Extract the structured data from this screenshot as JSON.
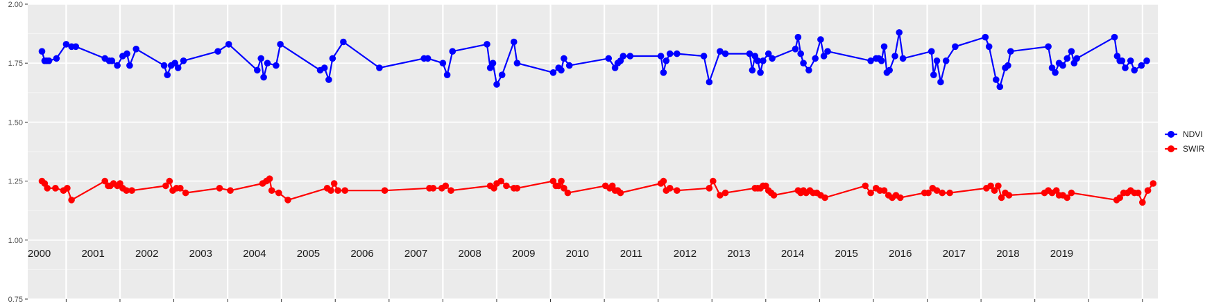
{
  "chart_data": {
    "type": "line",
    "ylim": [
      0.75,
      2.0
    ],
    "yticks": [
      "0.75",
      "1.00",
      "1.25",
      "1.50",
      "1.75",
      "2.00"
    ],
    "grid": true,
    "legend_position": "right",
    "year_labels": [
      "2000",
      "2001",
      "2002",
      "2003",
      "2004",
      "2005",
      "2006",
      "2007",
      "2008",
      "2009",
      "2010",
      "2011",
      "2012",
      "2013",
      "2014",
      "2015",
      "2016",
      "2017",
      "2018",
      "2019"
    ],
    "series": [
      {
        "name": "NDVI",
        "color": "#0000ff",
        "points": [
          [
            2000.05,
            1.8
          ],
          [
            2000.1,
            1.76
          ],
          [
            2000.14,
            1.76
          ],
          [
            2000.18,
            1.76
          ],
          [
            2000.32,
            1.77
          ],
          [
            2000.5,
            1.83
          ],
          [
            2000.6,
            1.82
          ],
          [
            2000.68,
            1.82
          ],
          [
            2001.22,
            1.77
          ],
          [
            2001.3,
            1.76
          ],
          [
            2001.35,
            1.76
          ],
          [
            2001.45,
            1.74
          ],
          [
            2001.55,
            1.78
          ],
          [
            2001.63,
            1.79
          ],
          [
            2001.68,
            1.74
          ],
          [
            2001.8,
            1.81
          ],
          [
            2002.32,
            1.74
          ],
          [
            2002.38,
            1.7
          ],
          [
            2002.45,
            1.74
          ],
          [
            2002.52,
            1.75
          ],
          [
            2002.58,
            1.73
          ],
          [
            2002.68,
            1.76
          ],
          [
            2003.32,
            1.8
          ],
          [
            2003.52,
            1.83
          ],
          [
            2004.05,
            1.72
          ],
          [
            2004.12,
            1.77
          ],
          [
            2004.17,
            1.69
          ],
          [
            2004.24,
            1.75
          ],
          [
            2004.4,
            1.74
          ],
          [
            2004.48,
            1.83
          ],
          [
            2005.22,
            1.72
          ],
          [
            2005.3,
            1.73
          ],
          [
            2005.38,
            1.68
          ],
          [
            2005.45,
            1.77
          ],
          [
            2005.65,
            1.84
          ],
          [
            2006.32,
            1.73
          ],
          [
            2007.15,
            1.77
          ],
          [
            2007.22,
            1.77
          ],
          [
            2007.5,
            1.75
          ],
          [
            2007.58,
            1.7
          ],
          [
            2007.68,
            1.8
          ],
          [
            2008.32,
            1.83
          ],
          [
            2008.38,
            1.73
          ],
          [
            2008.43,
            1.75
          ],
          [
            2008.5,
            1.66
          ],
          [
            2008.6,
            1.7
          ],
          [
            2008.82,
            1.84
          ],
          [
            2008.88,
            1.75
          ],
          [
            2009.55,
            1.71
          ],
          [
            2009.65,
            1.73
          ],
          [
            2009.7,
            1.72
          ],
          [
            2009.75,
            1.77
          ],
          [
            2009.85,
            1.74
          ],
          [
            2010.58,
            1.77
          ],
          [
            2010.7,
            1.73
          ],
          [
            2010.75,
            1.75
          ],
          [
            2010.8,
            1.76
          ],
          [
            2010.85,
            1.78
          ],
          [
            2010.98,
            1.78
          ],
          [
            2011.55,
            1.78
          ],
          [
            2011.6,
            1.71
          ],
          [
            2011.65,
            1.76
          ],
          [
            2011.72,
            1.79
          ],
          [
            2011.85,
            1.79
          ],
          [
            2012.35,
            1.78
          ],
          [
            2012.45,
            1.67
          ],
          [
            2012.65,
            1.8
          ],
          [
            2012.75,
            1.79
          ],
          [
            2013.2,
            1.79
          ],
          [
            2013.25,
            1.72
          ],
          [
            2013.3,
            1.78
          ],
          [
            2013.35,
            1.76
          ],
          [
            2013.4,
            1.71
          ],
          [
            2013.45,
            1.76
          ],
          [
            2013.55,
            1.79
          ],
          [
            2013.62,
            1.77
          ],
          [
            2014.05,
            1.81
          ],
          [
            2014.1,
            1.86
          ],
          [
            2014.15,
            1.79
          ],
          [
            2014.2,
            1.75
          ],
          [
            2014.3,
            1.72
          ],
          [
            2014.42,
            1.77
          ],
          [
            2014.52,
            1.85
          ],
          [
            2014.58,
            1.78
          ],
          [
            2014.65,
            1.8
          ],
          [
            2015.45,
            1.76
          ],
          [
            2015.55,
            1.77
          ],
          [
            2015.6,
            1.77
          ],
          [
            2015.65,
            1.76
          ],
          [
            2015.7,
            1.82
          ],
          [
            2015.75,
            1.71
          ],
          [
            2015.8,
            1.72
          ],
          [
            2015.9,
            1.78
          ],
          [
            2015.98,
            1.88
          ],
          [
            2016.05,
            1.77
          ],
          [
            2016.58,
            1.8
          ],
          [
            2016.62,
            1.7
          ],
          [
            2016.68,
            1.76
          ],
          [
            2016.75,
            1.67
          ],
          [
            2016.85,
            1.76
          ],
          [
            2017.02,
            1.82
          ],
          [
            2017.58,
            1.86
          ],
          [
            2017.65,
            1.82
          ],
          [
            2017.78,
            1.68
          ],
          [
            2017.85,
            1.65
          ],
          [
            2017.95,
            1.73
          ],
          [
            2018.0,
            1.74
          ],
          [
            2018.05,
            1.8
          ],
          [
            2018.75,
            1.82
          ],
          [
            2018.82,
            1.73
          ],
          [
            2018.88,
            1.71
          ],
          [
            2018.95,
            1.75
          ],
          [
            2019.02,
            1.74
          ],
          [
            2019.1,
            1.77
          ],
          [
            2019.18,
            1.8
          ],
          [
            2019.23,
            1.75
          ],
          [
            2019.28,
            1.77
          ],
          [
            2019.98,
            1.86
          ],
          [
            2020.03,
            1.78
          ],
          [
            2020.08,
            1.76
          ],
          [
            2020.12,
            1.76
          ],
          [
            2020.18,
            1.73
          ],
          [
            2020.28,
            1.76
          ],
          [
            2020.35,
            1.72
          ],
          [
            2020.48,
            1.74
          ],
          [
            2020.58,
            1.76
          ]
        ]
      },
      {
        "name": "SWIR",
        "color": "#ff0000",
        "points": [
          [
            2000.05,
            1.25
          ],
          [
            2000.1,
            1.24
          ],
          [
            2000.15,
            1.22
          ],
          [
            2000.3,
            1.22
          ],
          [
            2000.45,
            1.21
          ],
          [
            2000.52,
            1.22
          ],
          [
            2000.6,
            1.17
          ],
          [
            2001.22,
            1.25
          ],
          [
            2001.28,
            1.23
          ],
          [
            2001.32,
            1.23
          ],
          [
            2001.38,
            1.24
          ],
          [
            2001.45,
            1.23
          ],
          [
            2001.5,
            1.24
          ],
          [
            2001.55,
            1.22
          ],
          [
            2001.62,
            1.21
          ],
          [
            2001.72,
            1.21
          ],
          [
            2002.35,
            1.23
          ],
          [
            2002.42,
            1.25
          ],
          [
            2002.48,
            1.21
          ],
          [
            2002.55,
            1.22
          ],
          [
            2002.62,
            1.22
          ],
          [
            2002.72,
            1.2
          ],
          [
            2003.35,
            1.22
          ],
          [
            2003.55,
            1.21
          ],
          [
            2004.15,
            1.24
          ],
          [
            2004.22,
            1.25
          ],
          [
            2004.28,
            1.26
          ],
          [
            2004.32,
            1.21
          ],
          [
            2004.45,
            1.2
          ],
          [
            2004.62,
            1.17
          ],
          [
            2005.35,
            1.22
          ],
          [
            2005.42,
            1.21
          ],
          [
            2005.48,
            1.24
          ],
          [
            2005.55,
            1.21
          ],
          [
            2005.68,
            1.21
          ],
          [
            2006.42,
            1.21
          ],
          [
            2007.25,
            1.22
          ],
          [
            2007.32,
            1.22
          ],
          [
            2007.48,
            1.22
          ],
          [
            2007.55,
            1.23
          ],
          [
            2007.65,
            1.21
          ],
          [
            2008.38,
            1.23
          ],
          [
            2008.45,
            1.22
          ],
          [
            2008.5,
            1.24
          ],
          [
            2008.58,
            1.25
          ],
          [
            2008.68,
            1.23
          ],
          [
            2008.82,
            1.22
          ],
          [
            2008.88,
            1.22
          ],
          [
            2009.55,
            1.25
          ],
          [
            2009.6,
            1.23
          ],
          [
            2009.65,
            1.23
          ],
          [
            2009.7,
            1.25
          ],
          [
            2009.75,
            1.22
          ],
          [
            2009.82,
            1.2
          ],
          [
            2010.52,
            1.23
          ],
          [
            2010.6,
            1.22
          ],
          [
            2010.65,
            1.23
          ],
          [
            2010.7,
            1.21
          ],
          [
            2010.75,
            1.21
          ],
          [
            2010.8,
            1.2
          ],
          [
            2011.55,
            1.24
          ],
          [
            2011.6,
            1.25
          ],
          [
            2011.65,
            1.21
          ],
          [
            2011.72,
            1.22
          ],
          [
            2011.85,
            1.21
          ],
          [
            2012.45,
            1.22
          ],
          [
            2012.52,
            1.25
          ],
          [
            2012.65,
            1.19
          ],
          [
            2012.75,
            1.2
          ],
          [
            2013.3,
            1.22
          ],
          [
            2013.35,
            1.22
          ],
          [
            2013.4,
            1.22
          ],
          [
            2013.45,
            1.23
          ],
          [
            2013.5,
            1.23
          ],
          [
            2013.55,
            1.21
          ],
          [
            2013.6,
            1.2
          ],
          [
            2013.65,
            1.19
          ],
          [
            2014.1,
            1.21
          ],
          [
            2014.15,
            1.2
          ],
          [
            2014.2,
            1.21
          ],
          [
            2014.25,
            1.2
          ],
          [
            2014.32,
            1.21
          ],
          [
            2014.38,
            1.2
          ],
          [
            2014.45,
            1.2
          ],
          [
            2014.52,
            1.19
          ],
          [
            2014.6,
            1.18
          ],
          [
            2015.35,
            1.23
          ],
          [
            2015.45,
            1.2
          ],
          [
            2015.55,
            1.22
          ],
          [
            2015.62,
            1.21
          ],
          [
            2015.7,
            1.21
          ],
          [
            2015.78,
            1.19
          ],
          [
            2015.85,
            1.18
          ],
          [
            2015.92,
            1.19
          ],
          [
            2016.0,
            1.18
          ],
          [
            2016.45,
            1.2
          ],
          [
            2016.52,
            1.2
          ],
          [
            2016.6,
            1.22
          ],
          [
            2016.68,
            1.21
          ],
          [
            2016.78,
            1.2
          ],
          [
            2016.92,
            1.2
          ],
          [
            2017.6,
            1.22
          ],
          [
            2017.68,
            1.23
          ],
          [
            2017.75,
            1.21
          ],
          [
            2017.82,
            1.23
          ],
          [
            2017.88,
            1.18
          ],
          [
            2017.95,
            1.2
          ],
          [
            2018.02,
            1.19
          ],
          [
            2018.68,
            1.2
          ],
          [
            2018.75,
            1.21
          ],
          [
            2018.82,
            1.2
          ],
          [
            2018.9,
            1.21
          ],
          [
            2018.95,
            1.19
          ],
          [
            2019.02,
            1.19
          ],
          [
            2019.1,
            1.18
          ],
          [
            2019.18,
            1.2
          ],
          [
            2020.02,
            1.17
          ],
          [
            2020.08,
            1.18
          ],
          [
            2020.15,
            1.2
          ],
          [
            2020.22,
            1.2
          ],
          [
            2020.28,
            1.21
          ],
          [
            2020.35,
            1.2
          ],
          [
            2020.42,
            1.2
          ],
          [
            2020.5,
            1.16
          ],
          [
            2020.6,
            1.21
          ],
          [
            2020.7,
            1.24
          ]
        ]
      }
    ]
  }
}
